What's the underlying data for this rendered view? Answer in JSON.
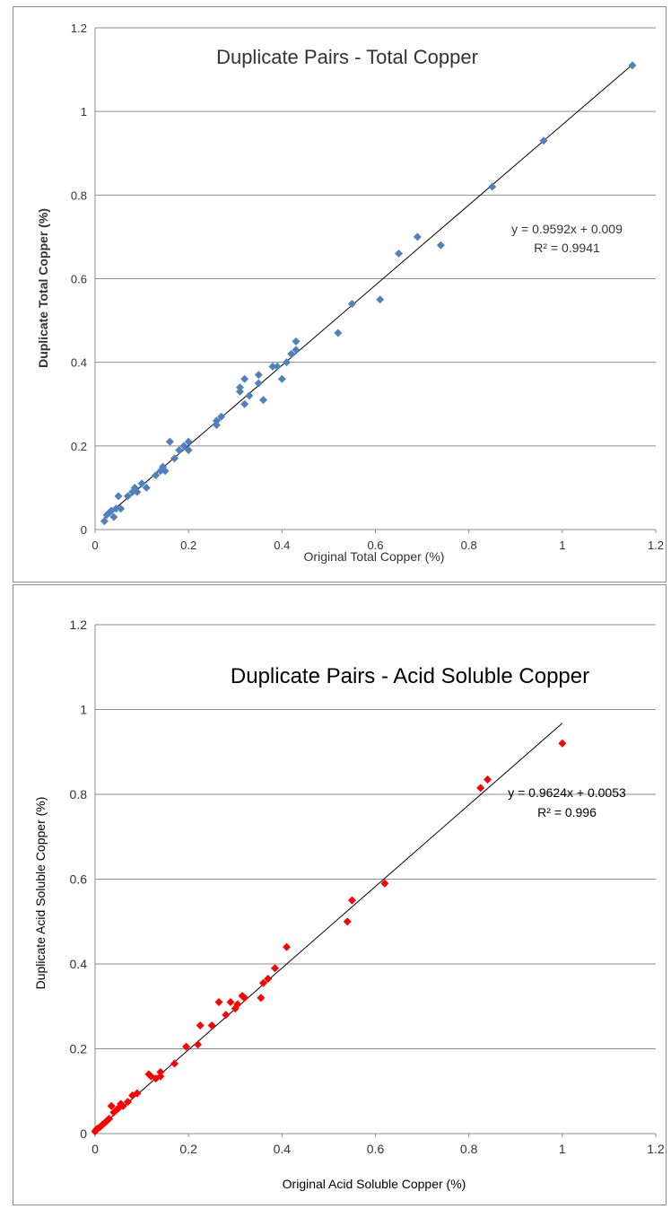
{
  "chart_data": [
    {
      "type": "scatter",
      "title": "Duplicate Pairs - Total Copper",
      "xlabel": "Original Total Copper (%)",
      "ylabel": "Duplicate Total Copper (%)",
      "xlim": [
        0,
        1.2
      ],
      "ylim": [
        0,
        1.2
      ],
      "xticks": [
        "0",
        "0.2",
        "0.4",
        "0.6",
        "0.8",
        "1",
        "1.2"
      ],
      "yticks": [
        "0",
        "0.2",
        "0.4",
        "0.6",
        "0.8",
        "1",
        "1.2"
      ],
      "grid": "horizontal",
      "marker_color": "#4f81bd",
      "trendline": {
        "slope": 0.9592,
        "intercept": 0.009,
        "equation": "y = 0.9592x + 0.009",
        "r2": "R² = 0.9941"
      },
      "points": [
        [
          0.02,
          0.02
        ],
        [
          0.025,
          0.035
        ],
        [
          0.03,
          0.04
        ],
        [
          0.035,
          0.045
        ],
        [
          0.04,
          0.03
        ],
        [
          0.045,
          0.05
        ],
        [
          0.05,
          0.08
        ],
        [
          0.055,
          0.05
        ],
        [
          0.07,
          0.08
        ],
        [
          0.08,
          0.09
        ],
        [
          0.085,
          0.1
        ],
        [
          0.09,
          0.09
        ],
        [
          0.1,
          0.11
        ],
        [
          0.11,
          0.1
        ],
        [
          0.13,
          0.13
        ],
        [
          0.14,
          0.14
        ],
        [
          0.145,
          0.15
        ],
        [
          0.15,
          0.14
        ],
        [
          0.16,
          0.21
        ],
        [
          0.17,
          0.17
        ],
        [
          0.18,
          0.19
        ],
        [
          0.19,
          0.2
        ],
        [
          0.2,
          0.21
        ],
        [
          0.2,
          0.19
        ],
        [
          0.26,
          0.25
        ],
        [
          0.26,
          0.26
        ],
        [
          0.27,
          0.27
        ],
        [
          0.31,
          0.34
        ],
        [
          0.31,
          0.33
        ],
        [
          0.32,
          0.36
        ],
        [
          0.32,
          0.3
        ],
        [
          0.33,
          0.32
        ],
        [
          0.35,
          0.35
        ],
        [
          0.35,
          0.37
        ],
        [
          0.36,
          0.31
        ],
        [
          0.38,
          0.39
        ],
        [
          0.39,
          0.39
        ],
        [
          0.4,
          0.36
        ],
        [
          0.41,
          0.4
        ],
        [
          0.42,
          0.42
        ],
        [
          0.43,
          0.45
        ],
        [
          0.43,
          0.43
        ],
        [
          0.52,
          0.47
        ],
        [
          0.55,
          0.54
        ],
        [
          0.61,
          0.55
        ],
        [
          0.65,
          0.66
        ],
        [
          0.69,
          0.7
        ],
        [
          0.74,
          0.68
        ],
        [
          0.85,
          0.82
        ],
        [
          0.96,
          0.93
        ],
        [
          1.15,
          1.11
        ]
      ]
    },
    {
      "type": "scatter",
      "title": "Duplicate Pairs - Acid Soluble Copper",
      "xlabel": "Original Acid Soluble Copper (%)",
      "ylabel": "Duplicate Acid Soluble Copper (%)",
      "xlim": [
        0,
        1.2
      ],
      "ylim": [
        0,
        1.2
      ],
      "xticks": [
        "0",
        "0.2",
        "0.4",
        "0.6",
        "0.8",
        "1",
        "1.2"
      ],
      "yticks": [
        "0",
        "0.2",
        "0.4",
        "0.6",
        "0.8",
        "1",
        "1.2"
      ],
      "grid": "horizontal",
      "marker_color": "#ff0000",
      "trendline": {
        "slope": 0.9624,
        "intercept": 0.0053,
        "equation": "y = 0.9624x + 0.0053",
        "r2": "R² = 0.996"
      },
      "points": [
        [
          0.0,
          0.005
        ],
        [
          0.003,
          0.01
        ],
        [
          0.006,
          0.012
        ],
        [
          0.01,
          0.015
        ],
        [
          0.015,
          0.02
        ],
        [
          0.02,
          0.025
        ],
        [
          0.025,
          0.03
        ],
        [
          0.03,
          0.035
        ],
        [
          0.035,
          0.065
        ],
        [
          0.04,
          0.05
        ],
        [
          0.045,
          0.055
        ],
        [
          0.05,
          0.06
        ],
        [
          0.055,
          0.07
        ],
        [
          0.06,
          0.065
        ],
        [
          0.07,
          0.075
        ],
        [
          0.08,
          0.09
        ],
        [
          0.09,
          0.095
        ],
        [
          0.115,
          0.14
        ],
        [
          0.12,
          0.135
        ],
        [
          0.13,
          0.13
        ],
        [
          0.14,
          0.145
        ],
        [
          0.14,
          0.135
        ],
        [
          0.17,
          0.165
        ],
        [
          0.195,
          0.205
        ],
        [
          0.22,
          0.21
        ],
        [
          0.225,
          0.255
        ],
        [
          0.25,
          0.255
        ],
        [
          0.265,
          0.31
        ],
        [
          0.28,
          0.28
        ],
        [
          0.29,
          0.31
        ],
        [
          0.3,
          0.295
        ],
        [
          0.305,
          0.305
        ],
        [
          0.315,
          0.325
        ],
        [
          0.32,
          0.32
        ],
        [
          0.355,
          0.32
        ],
        [
          0.36,
          0.355
        ],
        [
          0.37,
          0.365
        ],
        [
          0.385,
          0.39
        ],
        [
          0.41,
          0.44
        ],
        [
          0.54,
          0.5
        ],
        [
          0.55,
          0.55
        ],
        [
          0.62,
          0.59
        ],
        [
          0.825,
          0.815
        ],
        [
          0.84,
          0.835
        ],
        [
          1.0,
          0.92
        ]
      ]
    }
  ]
}
